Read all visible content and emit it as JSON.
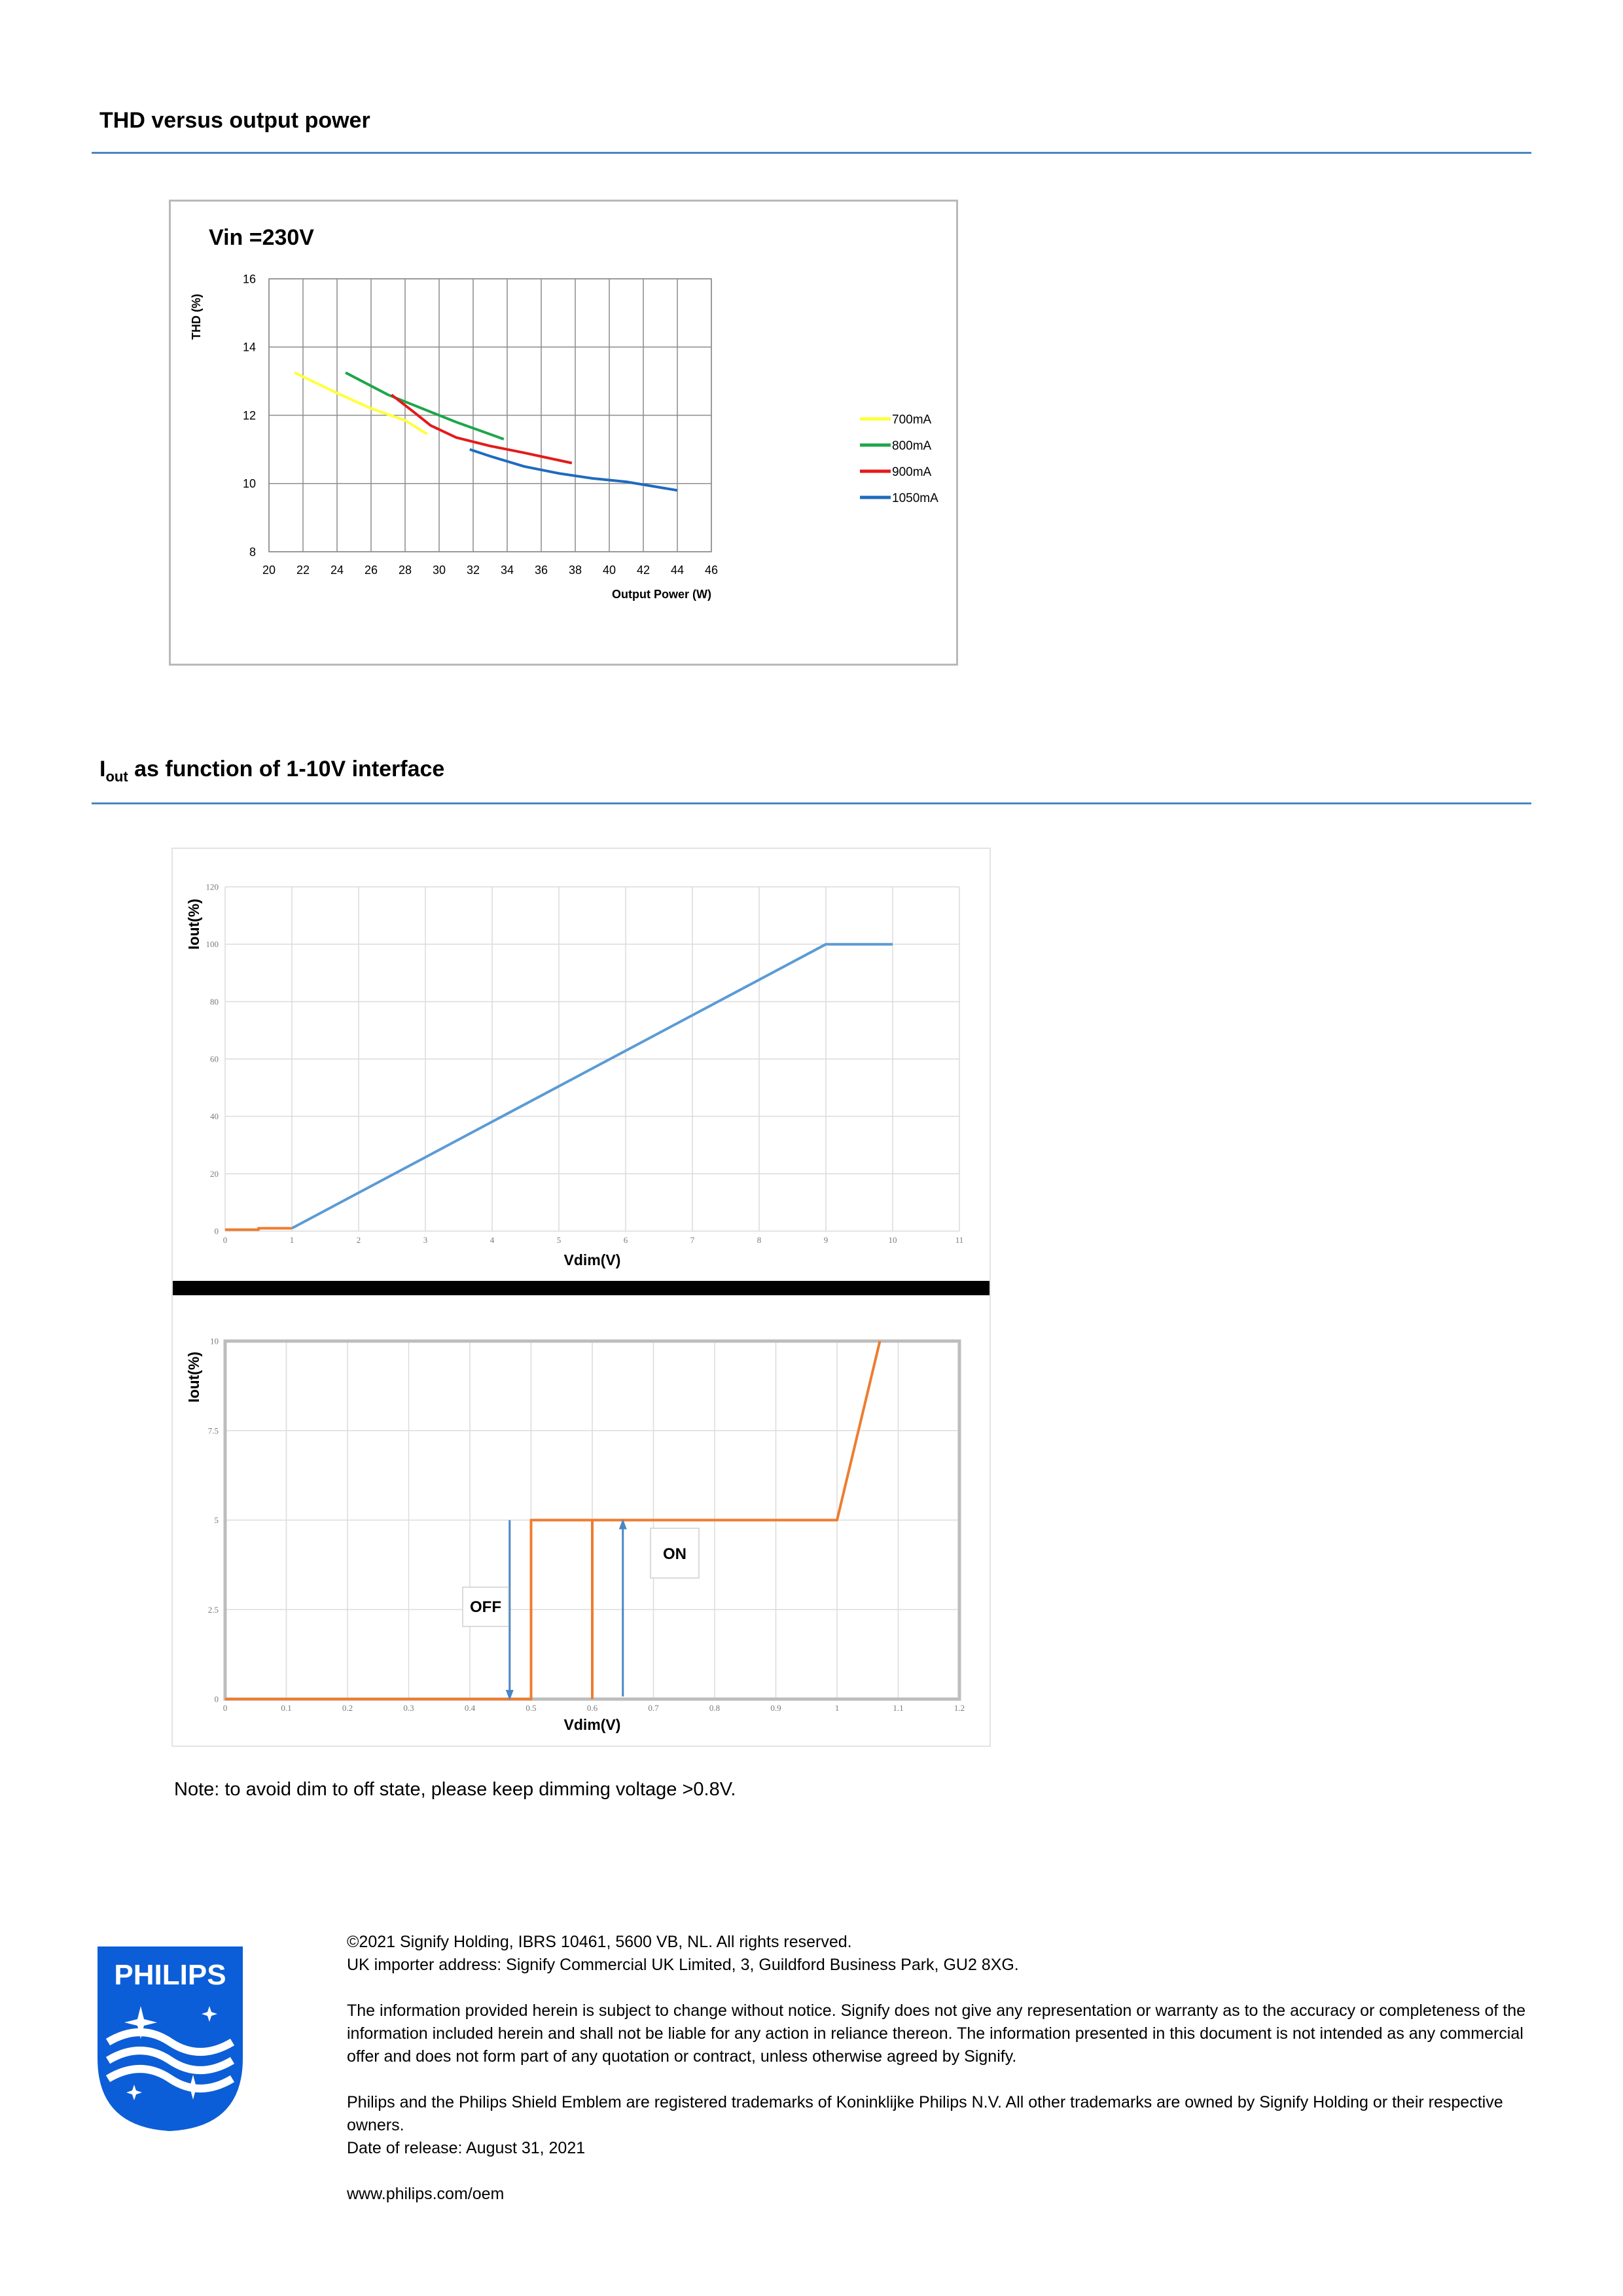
{
  "section1": {
    "title": "THD versus output power"
  },
  "section2": {
    "title_main": "I",
    "title_sub": "out",
    "title_rest": " as function of 1-10V interface"
  },
  "chart_data": [
    {
      "type": "line",
      "title": "Vin =230V",
      "xlabel": "Output Power (W)",
      "ylabel": "THD  (%)",
      "xlim": [
        20,
        46
      ],
      "ylim": [
        8,
        16
      ],
      "xticks": [
        "20",
        "22",
        "24",
        "26",
        "28",
        "30",
        "32",
        "34",
        "36",
        "38",
        "40",
        "42",
        "44",
        "46"
      ],
      "yticks": [
        "8",
        "10",
        "12",
        "14",
        "16"
      ],
      "grid": true,
      "legend_position": "right",
      "series": [
        {
          "name": "700mA",
          "color": "#ffff3a",
          "points": [
            [
              21.5,
              13.25
            ],
            [
              24,
              12.65
            ],
            [
              26,
              12.2
            ],
            [
              28,
              11.85
            ],
            [
              29.3,
              11.45
            ]
          ]
        },
        {
          "name": "800mA",
          "color": "#1ea64b",
          "points": [
            [
              24.5,
              13.25
            ],
            [
              27,
              12.6
            ],
            [
              29,
              12.2
            ],
            [
              31,
              11.8
            ],
            [
              33.8,
              11.3
            ]
          ]
        },
        {
          "name": "900mA",
          "color": "#e41a1a",
          "points": [
            [
              27.2,
              12.6
            ],
            [
              28.5,
              12.1
            ],
            [
              29.5,
              11.7
            ],
            [
              31,
              11.35
            ],
            [
              33,
              11.1
            ],
            [
              35,
              10.9
            ],
            [
              37.8,
              10.6
            ]
          ]
        },
        {
          "name": "1050mA",
          "color": "#1f6bbf",
          "points": [
            [
              31.8,
              11.0
            ],
            [
              33,
              10.8
            ],
            [
              35,
              10.5
            ],
            [
              37,
              10.3
            ],
            [
              39,
              10.15
            ],
            [
              41,
              10.05
            ],
            [
              44,
              9.8
            ]
          ]
        }
      ]
    },
    {
      "type": "line",
      "xlabel": "Vdim(V)",
      "ylabel": "Iout(%)",
      "xlim": [
        0,
        11
      ],
      "ylim": [
        0,
        120
      ],
      "xticks": [
        "0",
        "1",
        "2",
        "3",
        "4",
        "5",
        "6",
        "7",
        "8",
        "9",
        "10",
        "11"
      ],
      "yticks": [
        "0",
        "20",
        "40",
        "60",
        "80",
        "100",
        "120"
      ],
      "grid": true,
      "series": [
        {
          "color": "#5b9bd5",
          "points": [
            [
              1,
              1
            ],
            [
              9,
              100
            ],
            [
              10,
              100
            ]
          ]
        },
        {
          "color": "#ed7d31",
          "points": [
            [
              0,
              0.5
            ],
            [
              0.5,
              0.5
            ],
            [
              0.5,
              1
            ],
            [
              1,
              1
            ]
          ]
        }
      ]
    },
    {
      "type": "line",
      "xlabel": "Vdim(V)",
      "ylabel": "Iout(%)",
      "xlim": [
        0,
        1.2
      ],
      "ylim": [
        0,
        10
      ],
      "xticks": [
        "0",
        "0.1",
        "0.2",
        "0.3",
        "0.4",
        "0.5",
        "0.6",
        "0.7",
        "0.8",
        "0.9",
        "1",
        "1.1",
        "1.2"
      ],
      "yticks": [
        "0",
        "2.5",
        "5",
        "7.5",
        "10"
      ],
      "grid": true,
      "series": [
        {
          "color": "#ed7d31",
          "points": [
            [
              0,
              0
            ],
            [
              0.5,
              0
            ],
            [
              0.5,
              5
            ],
            [
              1,
              5
            ],
            [
              1.07,
              10
            ]
          ]
        },
        {
          "color": "#ed7d31",
          "points": [
            [
              0.6,
              0
            ],
            [
              0.6,
              5
            ]
          ]
        }
      ],
      "annotations": [
        {
          "text": "OFF",
          "arrow": "down",
          "x": 0.465
        },
        {
          "text": "ON",
          "arrow": "up",
          "x": 0.65
        }
      ]
    }
  ],
  "note": "Note: to avoid dim to off state, please keep dimming voltage >0.8V.",
  "footer": {
    "logo_text": "PHILIPS",
    "line1": "©2021 Signify Holding, IBRS 10461, 5600 VB, NL. All rights reserved.",
    "line2": "UK importer address: Signify Commercial UK Limited, 3, Guildford Business Park, GU2 8XG.",
    "disclaimer": "The information provided herein is subject to change without notice. Signify does not give any representation or warranty as to the accuracy or completeness of the information included herein and shall not be liable for any action in reliance thereon. The information presented in this document is not intended as any commercial offer and does not form part of any quotation or contract, unless otherwise agreed by Signify.",
    "trademarks": "Philips and the Philips Shield Emblem are registered trademarks of Koninklijke Philips N.V. All other trademarks are owned by Signify Holding or their respective owners.",
    "release": "Date of release: August 31, 2021",
    "url": "www.philips.com/oem"
  }
}
